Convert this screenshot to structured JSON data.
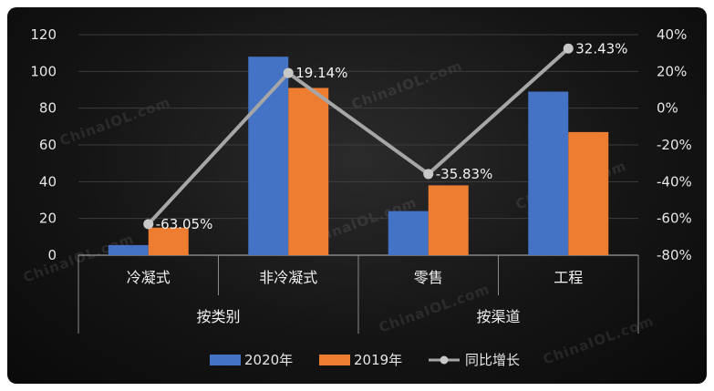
{
  "chart_data": {
    "type": "bar",
    "categories": [
      "冷凝式",
      "非冷凝式",
      "零售",
      "工程"
    ],
    "groups": [
      {
        "label": "按类别",
        "span": [
          0,
          1
        ]
      },
      {
        "label": "按渠道",
        "span": [
          2,
          3
        ]
      }
    ],
    "series": [
      {
        "name": "2020年",
        "kind": "bar",
        "axis": "left",
        "color": "#4472c4",
        "values": [
          5.5,
          108,
          24,
          89
        ]
      },
      {
        "name": "2019年",
        "kind": "bar",
        "axis": "left",
        "color": "#ed7d31",
        "values": [
          15,
          91,
          38,
          67
        ]
      },
      {
        "name": "同比增长",
        "kind": "line",
        "axis": "right",
        "color": "#a6a6a6",
        "values": [
          -63.05,
          19.14,
          -35.83,
          32.43
        ],
        "labels": [
          "-63.05%",
          "19.14%",
          "-35.83%",
          "32.43%"
        ]
      }
    ],
    "y_left": {
      "ticks": [
        "0",
        "20",
        "40",
        "60",
        "80",
        "100",
        "120"
      ],
      "range": [
        0,
        120
      ]
    },
    "y_right": {
      "ticks": [
        "-80%",
        "-60%",
        "-40%",
        "-20%",
        "0%",
        "20%",
        "40%"
      ],
      "range": [
        -80,
        40
      ]
    },
    "legend_position": "bottom",
    "grid": true
  },
  "watermark": "ChinaIOL.com"
}
